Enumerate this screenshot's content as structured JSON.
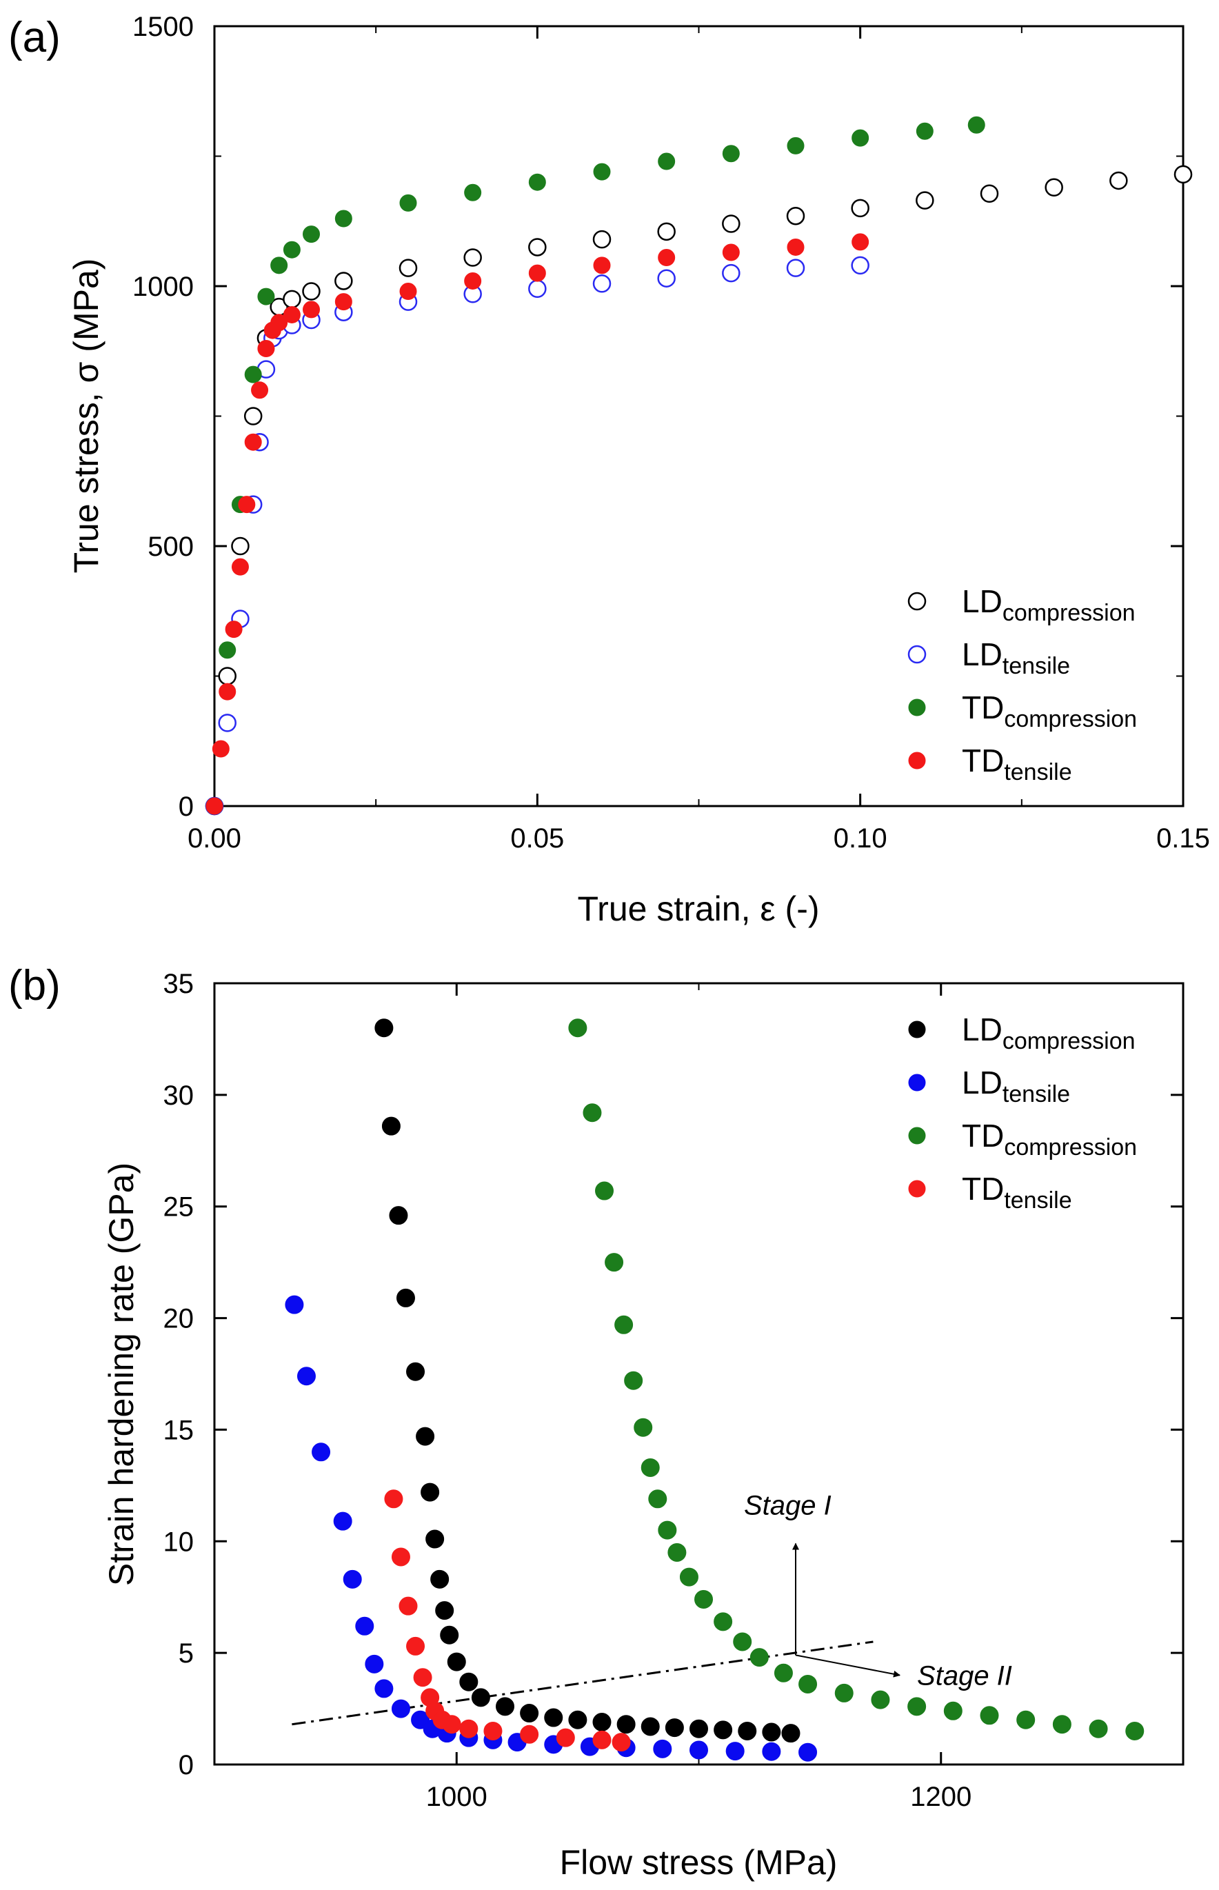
{
  "chart_data": [
    {
      "type": "scatter",
      "panel_label": "(a)",
      "xlabel": "True strain, ε (-)",
      "ylabel": "True stress, σ (MPa)",
      "xlim": [
        0,
        0.15
      ],
      "ylim": [
        0,
        1500
      ],
      "xticks": [
        "0.00",
        "0.05",
        "0.10",
        "0.15"
      ],
      "yticks": [
        "0",
        "500",
        "1000",
        "1500"
      ],
      "legend_position": "bottom-right",
      "series": [
        {
          "key": "ld_comp",
          "base": "LD",
          "sub": "compression",
          "marker": "open-circle",
          "color": "#000000",
          "x": [
            0,
            0.002,
            0.004,
            0.006,
            0.008,
            0.01,
            0.012,
            0.015,
            0.02,
            0.03,
            0.04,
            0.05,
            0.06,
            0.07,
            0.08,
            0.09,
            0.1,
            0.11,
            0.12,
            0.13,
            0.14,
            0.15
          ],
          "y": [
            0,
            250,
            500,
            750,
            900,
            960,
            975,
            990,
            1010,
            1035,
            1055,
            1075,
            1090,
            1105,
            1120,
            1135,
            1150,
            1165,
            1178,
            1190,
            1203,
            1215
          ]
        },
        {
          "key": "ld_tens",
          "base": "LD",
          "sub": "tensile",
          "marker": "open-circle",
          "color": "#2a2af2",
          "x": [
            0,
            0.002,
            0.004,
            0.006,
            0.007,
            0.008,
            0.009,
            0.01,
            0.012,
            0.015,
            0.02,
            0.03,
            0.04,
            0.05,
            0.06,
            0.07,
            0.08,
            0.09,
            0.1
          ],
          "y": [
            0,
            160,
            360,
            580,
            700,
            840,
            900,
            915,
            925,
            935,
            950,
            970,
            985,
            995,
            1005,
            1015,
            1025,
            1035,
            1040
          ]
        },
        {
          "key": "td_comp",
          "base": "TD",
          "sub": "compression",
          "marker": "filled-circle",
          "color": "#1c7d1c",
          "x": [
            0,
            0.002,
            0.004,
            0.006,
            0.008,
            0.01,
            0.012,
            0.015,
            0.02,
            0.03,
            0.04,
            0.05,
            0.06,
            0.07,
            0.08,
            0.09,
            0.1,
            0.11,
            0.118
          ],
          "y": [
            0,
            300,
            580,
            830,
            980,
            1040,
            1070,
            1100,
            1130,
            1160,
            1180,
            1200,
            1220,
            1240,
            1255,
            1270,
            1285,
            1298,
            1310
          ]
        },
        {
          "key": "td_tens",
          "base": "TD",
          "sub": "tensile",
          "marker": "filled-circle",
          "color": "#f21818",
          "x": [
            0,
            0.001,
            0.002,
            0.003,
            0.004,
            0.005,
            0.006,
            0.007,
            0.008,
            0.009,
            0.01,
            0.012,
            0.015,
            0.02,
            0.03,
            0.04,
            0.05,
            0.06,
            0.07,
            0.08,
            0.09,
            0.1
          ],
          "y": [
            0,
            110,
            220,
            340,
            460,
            580,
            700,
            800,
            880,
            915,
            930,
            945,
            955,
            970,
            990,
            1010,
            1025,
            1040,
            1055,
            1065,
            1075,
            1085
          ]
        }
      ]
    },
    {
      "type": "scatter",
      "panel_label": "(b)",
      "xlabel": "Flow stress (MPa)",
      "ylabel": "Strain hardening rate (GPa)",
      "xlim": [
        900,
        1300
      ],
      "ylim": [
        0,
        35
      ],
      "xticks": [
        "1000",
        "1200"
      ],
      "xtick_values": [
        1000,
        1200
      ],
      "yticks": [
        "0",
        "5",
        "10",
        "15",
        "20",
        "25",
        "30",
        "35"
      ],
      "legend_position": "top-right",
      "annotations": {
        "stage1": "Stage I",
        "stage2": "Stage II",
        "line_x": [
          932,
          1172
        ],
        "line_y": [
          1.8,
          5.5
        ],
        "arrow_origin": [
          1140,
          4.9
        ],
        "arrow_up_to": [
          1140,
          9.9
        ],
        "arrow_right_to": [
          1183,
          4.0
        ]
      },
      "series": [
        {
          "key": "ld_comp",
          "base": "LD",
          "sub": "compression",
          "marker": "filled-circle",
          "color": "#000000",
          "x": [
            970,
            973,
            976,
            979,
            983,
            987,
            989,
            991,
            993,
            995,
            997,
            1000,
            1005,
            1010,
            1020,
            1030,
            1040,
            1050,
            1060,
            1070,
            1080,
            1090,
            1100,
            1110,
            1120,
            1130,
            1138
          ],
          "y": [
            33.0,
            28.6,
            24.6,
            20.9,
            17.6,
            14.7,
            12.2,
            10.1,
            8.3,
            6.9,
            5.8,
            4.6,
            3.7,
            3.0,
            2.6,
            2.3,
            2.1,
            2.0,
            1.9,
            1.8,
            1.7,
            1.65,
            1.6,
            1.55,
            1.5,
            1.45,
            1.4
          ]
        },
        {
          "key": "ld_tens",
          "base": "LD",
          "sub": "tensile",
          "marker": "filled-circle",
          "color": "#0a0af0",
          "x": [
            933,
            938,
            944,
            953,
            957,
            962,
            966,
            970,
            977,
            985,
            990,
            996,
            1005,
            1015,
            1025,
            1040,
            1055,
            1070,
            1085,
            1100,
            1115,
            1130,
            1145
          ],
          "y": [
            20.6,
            17.4,
            14.0,
            10.9,
            8.3,
            6.2,
            4.5,
            3.4,
            2.5,
            2.0,
            1.6,
            1.4,
            1.2,
            1.1,
            1.0,
            0.9,
            0.8,
            0.75,
            0.7,
            0.65,
            0.6,
            0.58,
            0.55
          ]
        },
        {
          "key": "td_comp",
          "base": "TD",
          "sub": "compression",
          "marker": "filled-circle",
          "color": "#1c7d1c",
          "x": [
            1050,
            1056,
            1061,
            1065,
            1069,
            1073,
            1077,
            1080,
            1083,
            1087,
            1091,
            1096,
            1102,
            1110,
            1118,
            1125,
            1135,
            1145,
            1160,
            1175,
            1190,
            1205,
            1220,
            1235,
            1250,
            1265,
            1280
          ],
          "y": [
            33.0,
            29.2,
            25.7,
            22.5,
            19.7,
            17.2,
            15.1,
            13.3,
            11.9,
            10.5,
            9.5,
            8.4,
            7.4,
            6.4,
            5.5,
            4.8,
            4.1,
            3.6,
            3.2,
            2.9,
            2.6,
            2.4,
            2.2,
            2.0,
            1.8,
            1.6,
            1.5
          ]
        },
        {
          "key": "td_tens",
          "base": "TD",
          "sub": "tensile",
          "marker": "filled-circle",
          "color": "#f41c1c",
          "x": [
            974,
            977,
            980,
            983,
            986,
            989,
            991,
            994,
            998,
            1005,
            1015,
            1030,
            1045,
            1060,
            1068
          ],
          "y": [
            11.9,
            9.3,
            7.1,
            5.3,
            3.9,
            3.0,
            2.4,
            2.0,
            1.8,
            1.6,
            1.5,
            1.35,
            1.2,
            1.1,
            1.0
          ]
        }
      ]
    }
  ]
}
